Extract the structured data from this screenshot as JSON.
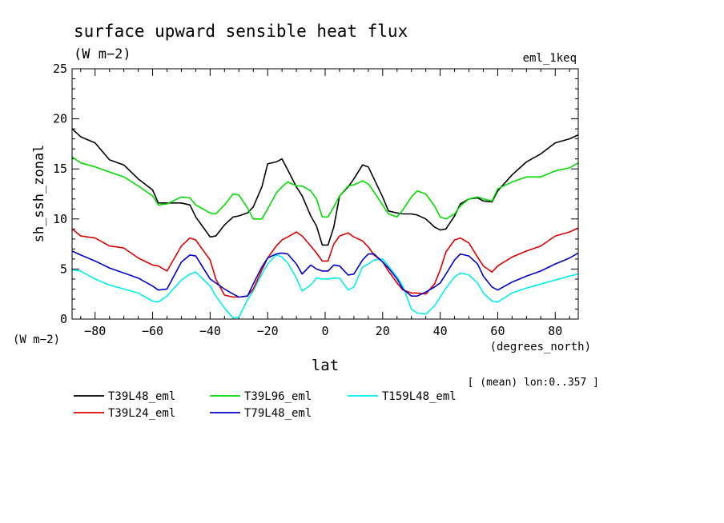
{
  "chart_data": {
    "type": "line",
    "title": "surface upward sensible heat flux",
    "subtitle": "(W m−2)",
    "experiment": "eml_1keq",
    "xlabel": "lat",
    "ylabel": "sh_ssh_zonal",
    "x_units": "(degrees_north)",
    "y_units": "(W m−2)",
    "note": "[ (mean) lon:0..357 ]",
    "xlim": [
      -88,
      88
    ],
    "ylim": [
      0,
      25
    ],
    "x_ticks": [
      -80,
      -60,
      -40,
      -20,
      0,
      20,
      40,
      60,
      80
    ],
    "x_tick_labels": [
      "−80",
      "−60",
      "−40",
      "−20",
      "0",
      "20",
      "40",
      "60",
      "80"
    ],
    "y_ticks": [
      0,
      5,
      10,
      15,
      20,
      25
    ],
    "y_tick_labels": [
      "0",
      "5",
      "10",
      "15",
      "20",
      "25"
    ],
    "grid": false,
    "legend_position": "bottom",
    "x": [
      -88,
      -85,
      -80,
      -75,
      -70,
      -65,
      -60,
      -58,
      -55,
      -50,
      -47,
      -45,
      -40,
      -38,
      -35,
      -32,
      -30,
      -27,
      -25,
      -22,
      -20,
      -17,
      -15,
      -13,
      -10,
      -8,
      -5,
      -3,
      -1,
      1,
      3,
      5,
      8,
      10,
      13,
      15,
      17,
      20,
      22,
      25,
      27,
      30,
      32,
      35,
      38,
      40,
      42,
      45,
      47,
      50,
      53,
      55,
      58,
      60,
      65,
      70,
      75,
      80,
      85,
      88
    ],
    "series": [
      {
        "name": "T39L48_eml",
        "color": "#000000",
        "values": [
          19.0,
          18.2,
          17.6,
          15.9,
          15.4,
          14.0,
          12.9,
          11.6,
          11.6,
          11.6,
          11.4,
          10.2,
          8.2,
          8.3,
          9.4,
          10.2,
          10.3,
          10.6,
          11.2,
          13.2,
          15.5,
          15.7,
          16.0,
          14.9,
          13.2,
          12.3,
          10.3,
          9.3,
          7.4,
          7.4,
          9.2,
          12.3,
          13.2,
          14.0,
          15.4,
          15.2,
          14.0,
          12.2,
          10.8,
          10.6,
          10.5,
          10.5,
          10.4,
          10.0,
          9.2,
          8.9,
          9.0,
          10.3,
          11.5,
          12.0,
          12.1,
          11.8,
          11.7,
          12.8,
          14.4,
          15.7,
          16.5,
          17.6,
          18.0,
          18.4
        ]
      },
      {
        "name": "T39L96_eml",
        "color": "#00dd00",
        "values": [
          16.2,
          15.6,
          15.2,
          14.7,
          14.2,
          13.3,
          12.3,
          11.4,
          11.5,
          12.2,
          12.1,
          11.4,
          10.6,
          10.5,
          11.4,
          12.5,
          12.4,
          11.1,
          10.0,
          10.0,
          11.0,
          12.6,
          13.2,
          13.7,
          13.3,
          13.3,
          12.8,
          12.0,
          10.2,
          10.2,
          11.2,
          12.3,
          13.3,
          13.4,
          13.8,
          13.5,
          12.7,
          11.4,
          10.5,
          10.2,
          10.9,
          12.2,
          12.8,
          12.5,
          11.3,
          10.2,
          10.0,
          10.5,
          11.3,
          12.0,
          12.2,
          12.0,
          11.8,
          13.0,
          13.7,
          14.2,
          14.2,
          14.8,
          15.1,
          15.6
        ]
      },
      {
        "name": "T159L48_eml",
        "color": "#00eeee",
        "values": [
          4.9,
          4.8,
          4.0,
          3.4,
          3.0,
          2.6,
          1.8,
          1.7,
          2.3,
          3.9,
          4.5,
          4.7,
          3.3,
          2.3,
          1.1,
          0.1,
          0.2,
          1.9,
          2.8,
          4.5,
          5.5,
          6.4,
          6.2,
          5.6,
          4.1,
          2.8,
          3.4,
          4.1,
          4.0,
          4.0,
          4.1,
          4.1,
          2.9,
          3.2,
          5.2,
          5.5,
          5.9,
          6.0,
          5.3,
          4.2,
          3.3,
          1.0,
          0.6,
          0.5,
          1.3,
          2.2,
          3.1,
          4.2,
          4.6,
          4.4,
          3.6,
          2.6,
          1.8,
          1.7,
          2.6,
          3.1,
          3.5,
          3.9,
          4.3,
          4.5
        ]
      },
      {
        "name": "T39L24_eml",
        "color": "#dd0000",
        "values": [
          9.0,
          8.3,
          8.1,
          7.3,
          7.1,
          6.1,
          5.4,
          5.3,
          4.8,
          7.3,
          8.1,
          7.9,
          5.9,
          4.0,
          2.4,
          2.2,
          2.2,
          2.3,
          3.0,
          4.9,
          6.1,
          7.3,
          7.9,
          8.2,
          8.7,
          8.3,
          7.3,
          6.6,
          5.8,
          5.8,
          7.5,
          8.3,
          8.6,
          8.2,
          7.8,
          7.2,
          6.4,
          5.7,
          4.8,
          3.6,
          2.9,
          2.6,
          2.6,
          2.5,
          3.5,
          4.9,
          6.7,
          7.9,
          8.1,
          7.6,
          6.2,
          5.3,
          4.7,
          5.3,
          6.2,
          6.8,
          7.3,
          8.3,
          8.7,
          9.1
        ]
      },
      {
        "name": "T79L48_eml",
        "color": "#0000cc",
        "values": [
          6.8,
          6.4,
          5.8,
          5.1,
          4.6,
          4.1,
          3.3,
          2.9,
          3.0,
          5.7,
          6.4,
          6.3,
          4.0,
          3.6,
          3.0,
          2.5,
          2.2,
          2.3,
          3.5,
          5.2,
          6.1,
          6.5,
          6.6,
          6.5,
          5.5,
          4.5,
          5.4,
          5.0,
          4.8,
          4.8,
          5.4,
          5.3,
          4.4,
          4.5,
          5.9,
          6.5,
          6.5,
          5.7,
          5.1,
          4.0,
          3.0,
          2.3,
          2.3,
          2.7,
          3.2,
          3.6,
          4.5,
          5.9,
          6.5,
          6.3,
          5.5,
          4.3,
          3.2,
          2.9,
          3.7,
          4.3,
          4.8,
          5.5,
          6.1,
          6.6
        ]
      }
    ]
  }
}
